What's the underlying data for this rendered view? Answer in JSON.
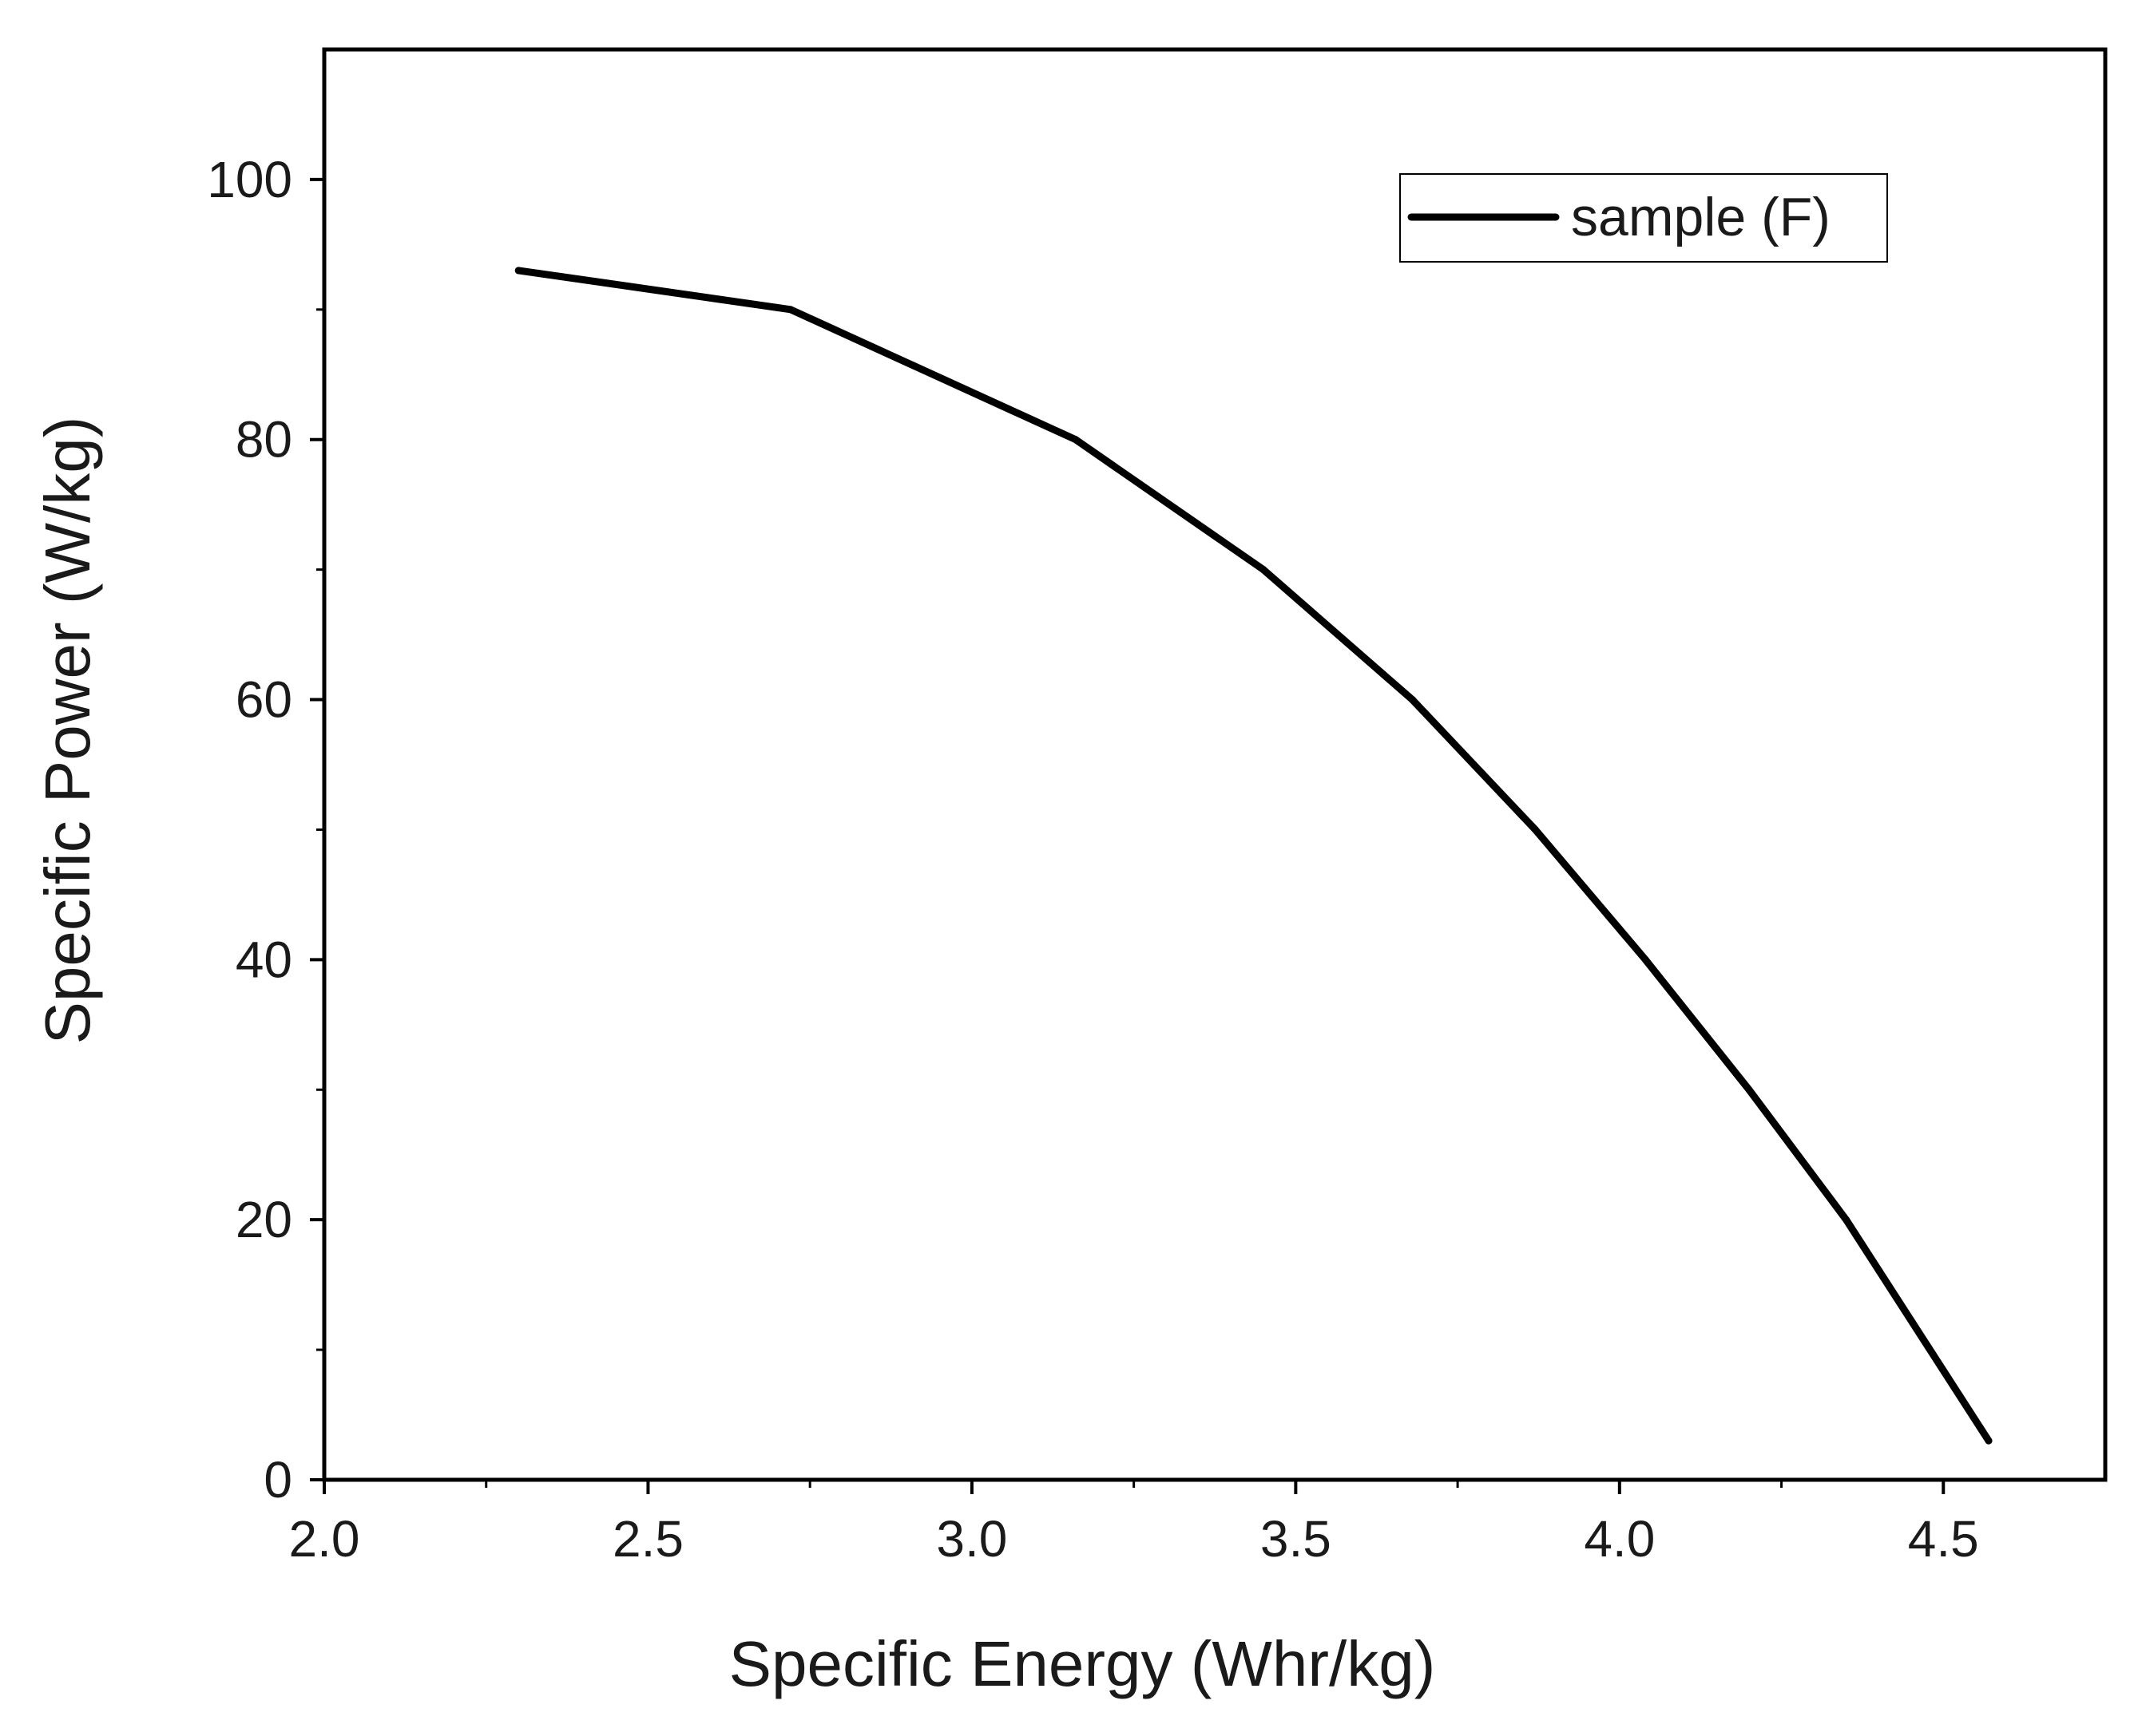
{
  "chart_data": {
    "type": "line",
    "title": "",
    "xlabel": "Specific Energy (Whr/kg)",
    "ylabel": "Specific Power (W/kg)",
    "xlim": [
      2.0,
      4.75
    ],
    "ylim": [
      0,
      110
    ],
    "x_ticks": [
      2.0,
      2.5,
      3.0,
      3.5,
      4.0,
      4.5
    ],
    "x_tick_labels": [
      "2.0",
      "2.5",
      "3.0",
      "3.5",
      "4.0",
      "4.5"
    ],
    "y_ticks": [
      0,
      20,
      40,
      60,
      80,
      100
    ],
    "y_tick_labels": [
      "0",
      "20",
      "40",
      "60",
      "80",
      "100"
    ],
    "x_minor_ticks": [
      2.25,
      2.75,
      3.25,
      3.75,
      4.25
    ],
    "y_minor_ticks": [
      10,
      30,
      50,
      70,
      90
    ],
    "grid": false,
    "legend_position": "top-right",
    "series": [
      {
        "name": "sample (F)",
        "color": "#000000",
        "x": [
          2.3,
          2.72,
          3.16,
          3.45,
          3.68,
          3.87,
          4.04,
          4.2,
          4.35,
          4.57
        ],
        "y": [
          93,
          90,
          80,
          70,
          60,
          50,
          40,
          30,
          20,
          3
        ]
      }
    ]
  }
}
